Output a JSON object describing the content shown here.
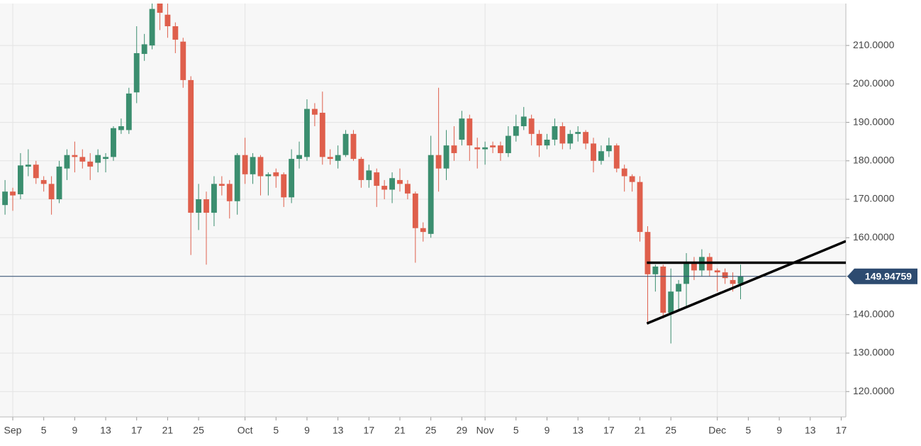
{
  "chart_data": {
    "type": "candlestick",
    "x": [
      -1,
      0,
      1,
      2,
      3,
      4,
      5,
      6,
      7,
      8,
      9,
      10,
      11,
      12,
      13,
      14,
      15,
      16,
      17,
      18,
      19,
      20,
      21,
      22,
      23,
      24,
      25,
      26,
      27,
      28,
      29,
      30,
      31,
      32,
      33,
      34,
      35,
      36,
      37,
      38,
      39,
      40,
      41,
      42,
      43,
      44,
      45,
      46,
      47,
      48,
      49,
      50,
      51,
      52,
      53,
      54,
      55,
      56,
      57,
      58,
      59,
      60,
      61,
      62,
      63,
      64,
      65,
      66,
      67,
      68,
      69,
      70,
      71,
      72,
      73,
      74,
      75,
      76,
      77,
      78,
      79,
      80,
      81,
      82,
      83,
      84,
      85,
      86,
      87,
      88,
      89,
      90,
      91,
      92,
      93,
      94
    ],
    "open": [
      168.5,
      172,
      171.3,
      178.5,
      179,
      175,
      174,
      170,
      178,
      181.5,
      181,
      179.8,
      179.5,
      180.5,
      181,
      188,
      188,
      197.8,
      207.8,
      210,
      221,
      218,
      215,
      211,
      201,
      166.5,
      170,
      166.5,
      174,
      174,
      169.5,
      181.5,
      176.5,
      181,
      176,
      177,
      176.5,
      170.5,
      180.5,
      181,
      193.5,
      192.5,
      181,
      180,
      181.5,
      187,
      180.5,
      175,
      177,
      173.5,
      172.5,
      175,
      174,
      171.5,
      162.5,
      161,
      181.5,
      178,
      184,
      185.5,
      191,
      183.5,
      183,
      184,
      184,
      182,
      186.5,
      189,
      191,
      187,
      184,
      185.5,
      189,
      184.5,
      187,
      187.5,
      184.5,
      180,
      182.5,
      184,
      178,
      176,
      174.5,
      161.5,
      150.5,
      152.5,
      140.5,
      146,
      148,
      153.5,
      151.5,
      155,
      151.5,
      151,
      149,
      148
    ],
    "high": [
      175,
      173,
      182,
      183,
      180,
      176,
      176,
      180,
      183,
      185,
      183,
      182,
      183,
      182,
      189,
      191,
      199,
      215,
      213,
      222,
      223,
      221,
      216,
      212,
      202,
      174,
      172,
      176,
      176,
      175,
      182,
      186,
      182,
      181.5,
      177,
      178,
      177,
      183,
      185,
      196,
      195,
      198,
      183,
      184,
      188,
      188,
      181,
      179,
      178,
      175,
      177,
      178,
      175,
      172,
      164,
      186.5,
      199,
      188,
      189,
      193,
      192,
      186,
      185,
      185,
      185,
      189,
      192,
      194,
      192,
      188,
      187,
      191,
      190,
      188,
      189,
      188,
      186,
      184,
      186,
      184.5,
      179,
      176.5,
      176,
      163,
      153,
      153,
      152,
      149,
      156,
      155,
      157,
      156,
      152,
      152,
      151,
      153
    ],
    "low": [
      166,
      167,
      170,
      176,
      174,
      172,
      166,
      169,
      175,
      177,
      178,
      175,
      177,
      177,
      180,
      187,
      187,
      195,
      206,
      209,
      214,
      212,
      208,
      199,
      155.5,
      162,
      153,
      163,
      171,
      165,
      166,
      174,
      174,
      171,
      171,
      173,
      168,
      169,
      178,
      180,
      189,
      179,
      179,
      178,
      181,
      180,
      173,
      173,
      168,
      170,
      169,
      172,
      170,
      153.5,
      159,
      160,
      172,
      175,
      180,
      184,
      180,
      178,
      179,
      182,
      180,
      181,
      185,
      188,
      184,
      181,
      183,
      184,
      183,
      183,
      185,
      183,
      177,
      179,
      181,
      177,
      172,
      172,
      159,
      138,
      146,
      139,
      132.5,
      141,
      142,
      149,
      150,
      150,
      146,
      148,
      146,
      144
    ],
    "close": [
      172,
      171,
      178.8,
      179,
      175.5,
      174,
      170,
      178.5,
      181.5,
      181,
      179.8,
      178.5,
      181.5,
      181,
      188.5,
      189,
      197.5,
      208,
      210.3,
      219.5,
      218.5,
      215,
      211.5,
      201,
      166.5,
      170,
      166.5,
      174,
      173.5,
      169.5,
      181.5,
      176.5,
      181,
      176,
      176.5,
      176,
      170.5,
      180.5,
      181.5,
      193.5,
      192,
      181,
      180.5,
      181.5,
      187,
      180.5,
      175,
      177.5,
      173.5,
      172.5,
      175.5,
      174,
      171.5,
      162.5,
      161.5,
      181.5,
      178,
      184,
      182,
      191,
      184,
      183,
      183.5,
      183.5,
      182,
      186.5,
      189,
      191.5,
      187,
      184,
      185.5,
      189,
      184.5,
      187,
      187.5,
      184.5,
      180,
      182.5,
      184,
      178,
      176,
      174.5,
      161.5,
      150.5,
      152.5,
      140.5,
      146,
      148,
      153.5,
      151.5,
      155,
      151.5,
      151,
      149.5,
      148,
      150
    ],
    "up_color": "#3b8e6f",
    "down_color": "#df5f4c",
    "last_price": 149.94759,
    "last_price_color": "#2d4b70",
    "trend_lines": [
      {
        "x": [
          81.9,
          107.6
        ],
        "y": [
          153.5,
          153.5
        ]
      },
      {
        "x": [
          81.9,
          107.6
        ],
        "y": [
          137.7,
          159.1
        ]
      }
    ],
    "xlim": [
      -1.65,
      107.6
    ],
    "ylim": [
      113.4,
      220.9
    ],
    "xticks": [
      {
        "value": 0,
        "label": "Sep"
      },
      {
        "value": 4,
        "label": "5"
      },
      {
        "value": 8,
        "label": "9"
      },
      {
        "value": 12,
        "label": "13"
      },
      {
        "value": 16,
        "label": "17"
      },
      {
        "value": 20,
        "label": "21"
      },
      {
        "value": 24,
        "label": "25"
      },
      {
        "value": 30,
        "label": "Oct"
      },
      {
        "value": 34,
        "label": "5"
      },
      {
        "value": 38,
        "label": "9"
      },
      {
        "value": 42,
        "label": "13"
      },
      {
        "value": 46,
        "label": "17"
      },
      {
        "value": 50,
        "label": "21"
      },
      {
        "value": 54,
        "label": "25"
      },
      {
        "value": 58,
        "label": "29"
      },
      {
        "value": 61,
        "label": "Nov"
      },
      {
        "value": 65,
        "label": "5"
      },
      {
        "value": 69,
        "label": "9"
      },
      {
        "value": 73,
        "label": "13"
      },
      {
        "value": 77,
        "label": "17"
      },
      {
        "value": 81,
        "label": "21"
      },
      {
        "value": 85,
        "label": "25"
      },
      {
        "value": 91,
        "label": "Dec"
      },
      {
        "value": 95,
        "label": "5"
      },
      {
        "value": 99,
        "label": "9"
      },
      {
        "value": 103,
        "label": "13"
      },
      {
        "value": 107,
        "label": "17"
      }
    ],
    "yticks": [
      {
        "value": 120,
        "label": "120.0000"
      },
      {
        "value": 130,
        "label": "130.0000"
      },
      {
        "value": 140,
        "label": "140.0000"
      },
      {
        "value": 150,
        "label": "150.0000"
      },
      {
        "value": 160,
        "label": "160.0000"
      },
      {
        "value": 170,
        "label": "170.0000"
      },
      {
        "value": 180,
        "label": "180.0000"
      },
      {
        "value": 190,
        "label": "190.0000"
      },
      {
        "value": 200,
        "label": "200.0000"
      },
      {
        "value": 210,
        "label": "210.0000"
      }
    ],
    "grid": true
  }
}
